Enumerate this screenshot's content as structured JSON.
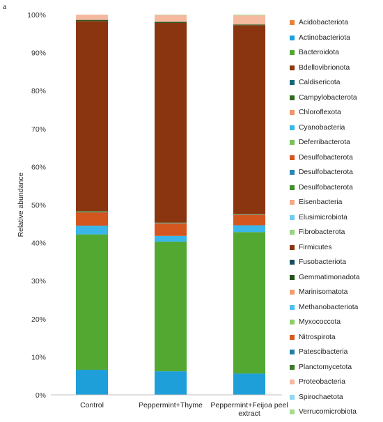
{
  "panel_label": "a",
  "chart_data": {
    "type": "bar",
    "stacked": true,
    "title": "",
    "xlabel": "",
    "ylabel": "Relative abundance",
    "ylim": [
      0,
      100
    ],
    "yticks": [
      "0%",
      "10%",
      "20%",
      "30%",
      "40%",
      "50%",
      "60%",
      "70%",
      "80%",
      "90%",
      "100%"
    ],
    "categories": [
      [
        "Control"
      ],
      [
        "Peppermint+Thyme"
      ],
      [
        "Peppermint+Feijoa peel",
        "extract"
      ]
    ],
    "legend_position": "right",
    "grid": false,
    "series": [
      {
        "name": "Acidobacteriota",
        "color": "#e8823a",
        "values": [
          0.0,
          0.0,
          0.0
        ]
      },
      {
        "name": "Actinobacteriota",
        "color": "#1e9fd9",
        "values": [
          6.6,
          6.2,
          5.6
        ]
      },
      {
        "name": "Bacteroidota",
        "color": "#53a832",
        "values": [
          35.6,
          34.1,
          37.2
        ]
      },
      {
        "name": "Bdellovibrionota",
        "color": "#8b3a12",
        "values": [
          0.0,
          0.0,
          0.0
        ]
      },
      {
        "name": "Caldisericota",
        "color": "#17667a",
        "values": [
          0.0,
          0.0,
          0.0
        ]
      },
      {
        "name": "Campylobacterota",
        "color": "#2e6b1e",
        "values": [
          0.0,
          0.0,
          0.0
        ]
      },
      {
        "name": "Chloroflexota",
        "color": "#f0946a",
        "values": [
          0.0,
          0.0,
          0.0
        ]
      },
      {
        "name": "Cyanobacteria",
        "color": "#3ab6ea",
        "values": [
          2.3,
          1.5,
          1.8
        ]
      },
      {
        "name": "Deferribacterota",
        "color": "#79c257",
        "values": [
          0.0,
          0.0,
          0.0
        ]
      },
      {
        "name": "Desulfobacterota",
        "color": "#d4561f",
        "values": [
          3.5,
          3.3,
          2.8
        ]
      },
      {
        "name": "Desulfobacterota",
        "color": "#2a86b5",
        "values": [
          0.1,
          0.1,
          0.1
        ]
      },
      {
        "name": "Desulfobacterota",
        "color": "#3f8f2a",
        "values": [
          0.2,
          0.1,
          0.1
        ]
      },
      {
        "name": "Eisenbacteria",
        "color": "#f2a88a",
        "values": [
          0.0,
          0.0,
          0.0
        ]
      },
      {
        "name": "Elusimicrobiota",
        "color": "#6fcdf0",
        "values": [
          0.0,
          0.0,
          0.0
        ]
      },
      {
        "name": "Fibrobacterota",
        "color": "#9ad47e",
        "values": [
          0.0,
          0.0,
          0.0
        ]
      },
      {
        "name": "Firmicutes",
        "color": "#8a3510",
        "values": [
          50.0,
          52.5,
          49.6
        ]
      },
      {
        "name": "Fusobacteriota",
        "color": "#1b4f60",
        "values": [
          0.0,
          0.0,
          0.0
        ]
      },
      {
        "name": "Gemmatimonadota",
        "color": "#24521a",
        "values": [
          0.3,
          0.3,
          0.2
        ]
      },
      {
        "name": "Marinisomatota",
        "color": "#f29d6c",
        "values": [
          0.0,
          0.0,
          0.0
        ]
      },
      {
        "name": "Methanobacteriota",
        "color": "#4fbfec",
        "values": [
          0.0,
          0.0,
          0.0
        ]
      },
      {
        "name": "Myxococcota",
        "color": "#8ccf66",
        "values": [
          0.0,
          0.0,
          0.0
        ]
      },
      {
        "name": "Nitrospirota",
        "color": "#d9581e",
        "values": [
          0.0,
          0.0,
          0.0
        ]
      },
      {
        "name": "Patescibacteria",
        "color": "#1f7fa6",
        "values": [
          0.0,
          0.0,
          0.0
        ]
      },
      {
        "name": "Planctomycetota",
        "color": "#3c7a26",
        "values": [
          0.0,
          0.0,
          0.0
        ]
      },
      {
        "name": "Proteobacteria",
        "color": "#f5b9a0",
        "values": [
          1.4,
          1.8,
          2.4
        ]
      },
      {
        "name": "Spirochaetota",
        "color": "#8ed8f4",
        "values": [
          0.0,
          0.0,
          0.0
        ]
      },
      {
        "name": "Verrucomicrobiota",
        "color": "#a6db8c",
        "values": [
          0.0,
          0.1,
          0.2
        ]
      }
    ]
  }
}
